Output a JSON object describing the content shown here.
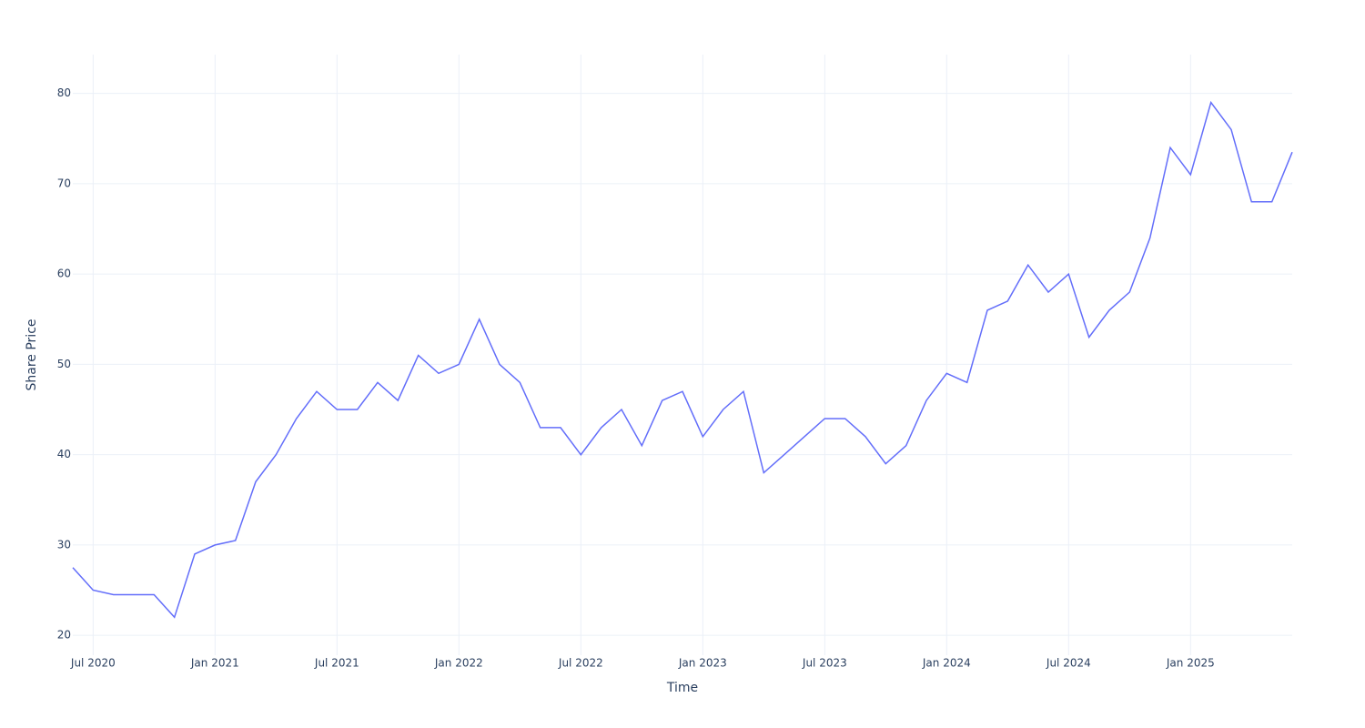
{
  "chart_data": {
    "type": "line",
    "x_label": "Time",
    "y_label": "Share Price",
    "x": [
      "2020-06",
      "2020-07",
      "2020-08",
      "2020-09",
      "2020-10",
      "2020-11",
      "2020-12",
      "2021-01",
      "2021-02",
      "2021-03",
      "2021-04",
      "2021-05",
      "2021-06",
      "2021-07",
      "2021-08",
      "2021-09",
      "2021-10",
      "2021-11",
      "2021-12",
      "2022-01",
      "2022-02",
      "2022-03",
      "2022-04",
      "2022-05",
      "2022-06",
      "2022-07",
      "2022-08",
      "2022-09",
      "2022-10",
      "2022-11",
      "2022-12",
      "2023-01",
      "2023-02",
      "2023-03",
      "2023-04",
      "2023-05",
      "2023-06",
      "2023-07",
      "2023-08",
      "2023-09",
      "2023-10",
      "2023-11",
      "2023-12",
      "2024-01",
      "2024-02",
      "2024-03",
      "2024-04",
      "2024-05",
      "2024-06",
      "2024-07",
      "2024-08",
      "2024-09",
      "2024-10",
      "2024-11",
      "2024-12",
      "2025-01",
      "2025-02",
      "2025-03",
      "2025-04",
      "2025-05",
      "2025-06"
    ],
    "series": [
      {
        "name": "Share Price",
        "color": "#636efa",
        "values": [
          27.5,
          25,
          24.5,
          24.5,
          24.5,
          22,
          29,
          30,
          30.5,
          37,
          40,
          44,
          47,
          45,
          45,
          48,
          46,
          51,
          49,
          50,
          55,
          50,
          48,
          43,
          43,
          40,
          43,
          45,
          41,
          46,
          47,
          42,
          45,
          47,
          38,
          40,
          42,
          44,
          44,
          42,
          39,
          41,
          46,
          49,
          48,
          56,
          57,
          61,
          58,
          60,
          53,
          56,
          58,
          64,
          74,
          71,
          79,
          76,
          68,
          68,
          73.5
        ]
      }
    ],
    "xlim": [
      "2020-06",
      "2025-06"
    ],
    "xticks": [
      {
        "value": "2020-07",
        "label": "Jul 2020"
      },
      {
        "value": "2021-01",
        "label": "Jan 2021"
      },
      {
        "value": "2021-07",
        "label": "Jul 2021"
      },
      {
        "value": "2022-01",
        "label": "Jan 2022"
      },
      {
        "value": "2022-07",
        "label": "Jul 2022"
      },
      {
        "value": "2023-01",
        "label": "Jan 2023"
      },
      {
        "value": "2023-07",
        "label": "Jul 2023"
      },
      {
        "value": "2024-01",
        "label": "Jan 2024"
      },
      {
        "value": "2024-07",
        "label": "Jul 2024"
      },
      {
        "value": "2025-01",
        "label": "Jan 2025"
      }
    ],
    "ylim": [
      17.8,
      84.3
    ],
    "yticks": [
      20,
      30,
      40,
      50,
      60,
      70,
      80
    ],
    "grid": true
  }
}
